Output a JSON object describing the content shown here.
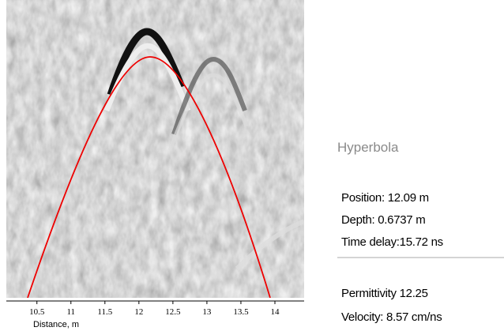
{
  "radargram": {
    "x_axis": {
      "label": "Distance, m",
      "xlim": [
        10.05,
        14.43
      ],
      "ticks": [
        10.5,
        11,
        11.5,
        12,
        12.5,
        13,
        13.5,
        14
      ]
    }
  },
  "panel": {
    "title": "Hyperbola",
    "rows": [
      "Position:  12.09 m",
      "Depth:  0.6737 m",
      "Time delay:15.72 ns"
    ],
    "rows2": [
      "Permittivity  12.25",
      "Velocity:  8.57 cm/ns"
    ]
  }
}
